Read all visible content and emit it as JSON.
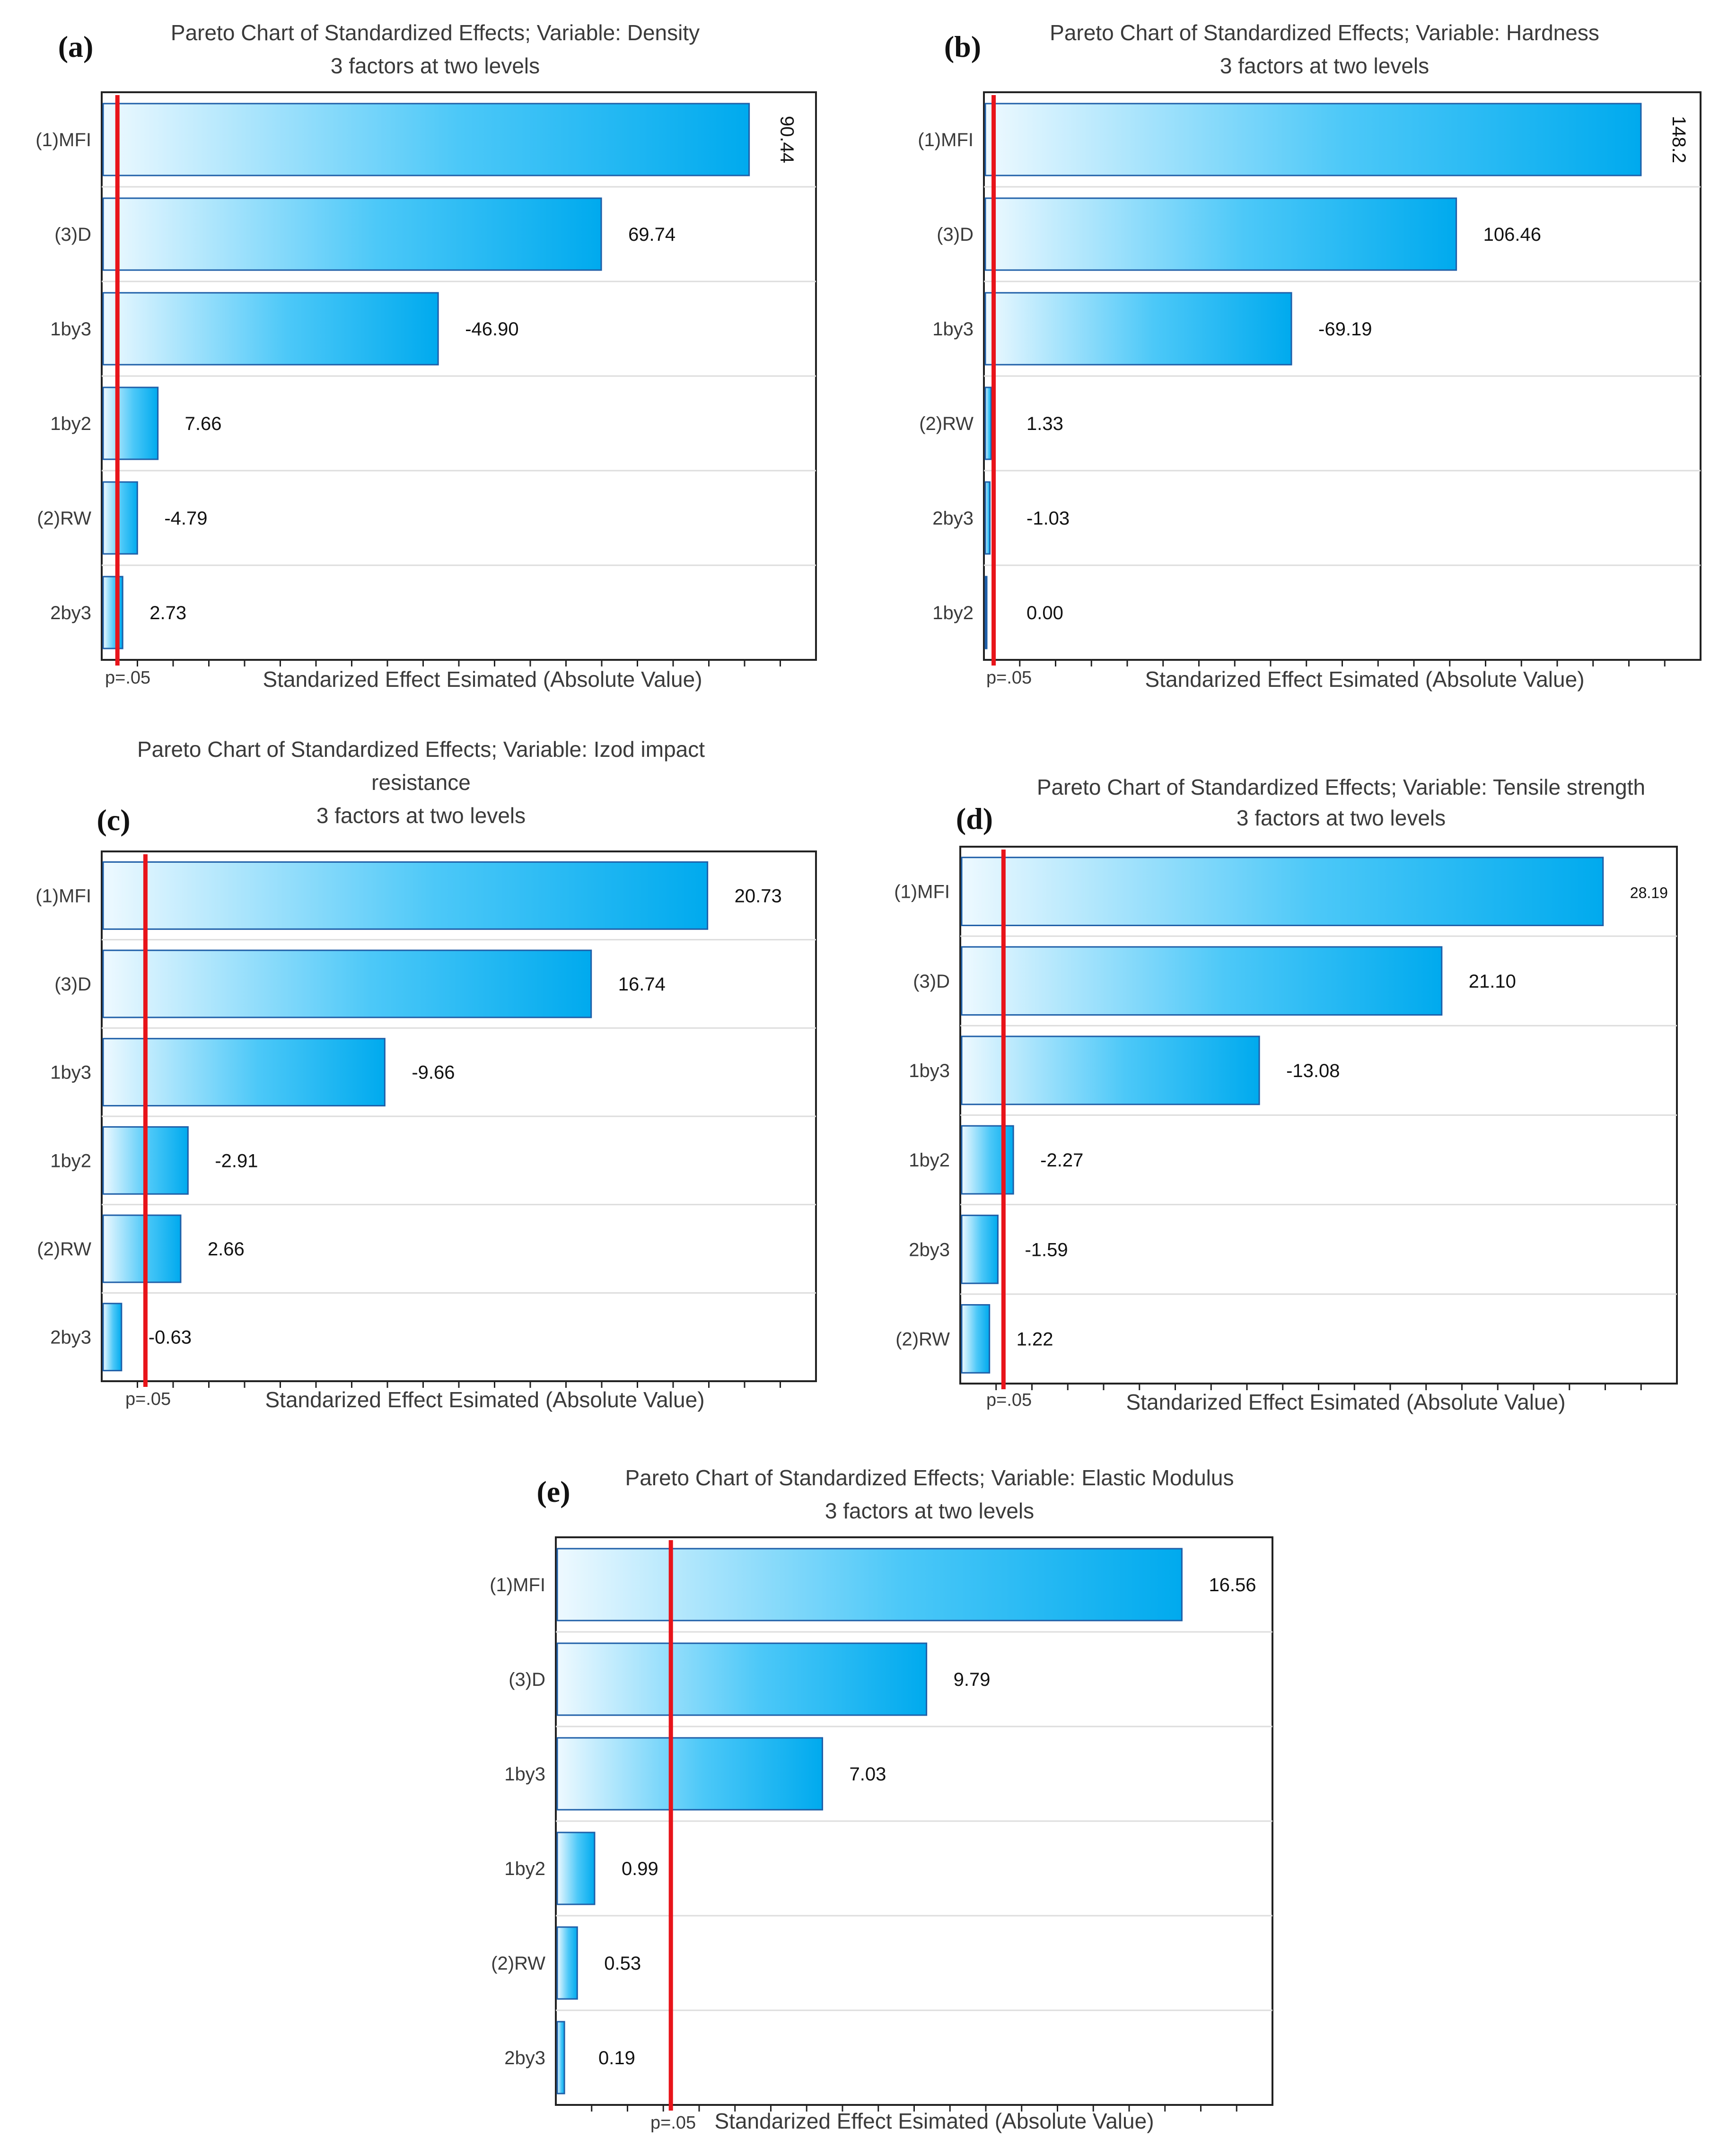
{
  "colors": {
    "bar_dark": "#00aaee",
    "bar_light": "#eaf8fe",
    "bar_stroke": "#1f5fa8",
    "ref_line": "#e8141a",
    "frame": "#222222",
    "grid": "#dddddd"
  },
  "chart_data": [
    {
      "panel": "(a)",
      "type": "bar",
      "orientation": "horizontal",
      "title": [
        "Pareto Chart of Standardized Effects; Variable: Density",
        "3 factors at two levels"
      ],
      "categories": [
        "(1)MFI",
        "(3)D",
        "1by3",
        "1by2",
        "(2)RW",
        "2by3"
      ],
      "values": [
        90.44,
        69.74,
        46.9,
        7.66,
        4.79,
        2.73
      ],
      "value_labels": [
        "90.44",
        "69.74",
        "-46.90",
        "7.66",
        "-4.79",
        "2.73"
      ],
      "xlabel": "Standarized Effect Esimated (Absolute Value)",
      "reference_label": "p=.05",
      "reference_value": 2.2,
      "xlim": [
        0,
        100
      ],
      "rotated_first_label": true
    },
    {
      "panel": "(b)",
      "type": "bar",
      "orientation": "horizontal",
      "title": [
        "Pareto Chart of Standardized Effects; Variable: Hardness",
        "3 factors at two levels"
      ],
      "categories": [
        "(1)MFI",
        "(3)D",
        "1by3",
        "(2)RW",
        "2by3",
        "1by2"
      ],
      "values": [
        148.2,
        106.46,
        69.19,
        1.33,
        1.03,
        0.0
      ],
      "value_labels": [
        "148.2",
        "106.46",
        "-69.19",
        "1.33",
        "-1.03",
        "0.00"
      ],
      "xlabel": "Standarized Effect Esimated (Absolute Value)",
      "reference_label": "p=.05",
      "reference_value": 2.2,
      "xlim": [
        0,
        162
      ],
      "rotated_first_label": true
    },
    {
      "panel": "(c)",
      "type": "bar",
      "orientation": "horizontal",
      "title": [
        "Pareto Chart of Standardized Effects; Variable: Izod impact",
        "resistance",
        "3 factors at two levels"
      ],
      "categories": [
        "(1)MFI",
        "(3)D",
        "1by3",
        "1by2",
        "(2)RW",
        "2by3"
      ],
      "values": [
        20.73,
        16.74,
        9.66,
        2.91,
        2.66,
        0.63
      ],
      "value_labels": [
        "20.73",
        "16.74",
        "-9.66",
        "-2.91",
        "2.66",
        "-0.63"
      ],
      "xlabel": "Standarized Effect Esimated (Absolute Value)",
      "reference_label": "p=.05",
      "reference_value": 1.5,
      "xlim": [
        0,
        24.5
      ],
      "rotated_first_label": false
    },
    {
      "panel": "(d)",
      "type": "bar",
      "orientation": "horizontal",
      "title": [
        "Pareto Chart of Standardized Effects; Variable: Tensile strength",
        "3 factors at two levels"
      ],
      "categories": [
        "(1)MFI",
        "(3)D",
        "1by3",
        "1by2",
        "2by3",
        "(2)RW"
      ],
      "values": [
        28.19,
        21.1,
        13.08,
        2.27,
        1.59,
        1.22
      ],
      "value_labels": [
        "28.19",
        "21.10",
        "-13.08",
        "-2.27",
        "-1.59",
        "1.22"
      ],
      "xlabel": "Standarized Effect Esimated (Absolute Value)",
      "reference_label": "p=.05",
      "reference_value": 1.9,
      "xlim": [
        0,
        31.5
      ],
      "rotated_first_label": false,
      "small_first_label": true
    },
    {
      "panel": "(e)",
      "type": "bar",
      "orientation": "horizontal",
      "title": [
        "Pareto Chart of Standardized Effects; Variable: Elastic Modulus",
        "3 factors at two levels"
      ],
      "categories": [
        "(1)MFI",
        "(3)D",
        "1by3",
        "1by2",
        "(2)RW",
        "2by3"
      ],
      "values": [
        16.56,
        9.79,
        7.03,
        0.99,
        0.53,
        0.19
      ],
      "value_labels": [
        "16.56",
        "9.79",
        "7.03",
        "0.99",
        "0.53",
        "0.19"
      ],
      "xlabel": "Standarized Effect Esimated (Absolute Value)",
      "reference_label": "p=.05",
      "reference_value": 3.05,
      "xlim": [
        0,
        19
      ],
      "rotated_first_label": false
    }
  ]
}
